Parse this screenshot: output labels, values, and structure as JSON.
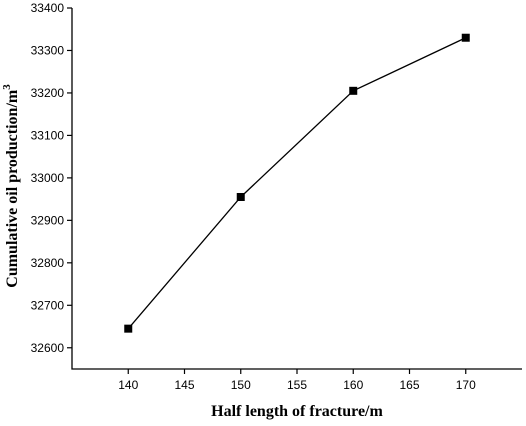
{
  "chart_data": {
    "type": "line",
    "title": "",
    "xlabel": "Half length of fracture/m",
    "ylabel": "Cumulative oil production/m",
    "ylabel_superscript": "3",
    "x": [
      140,
      150,
      160,
      170
    ],
    "series": [
      {
        "values": [
          32645,
          32955,
          33205,
          33330
        ]
      }
    ],
    "xlim": [
      135,
      175
    ],
    "ylim": [
      32550,
      33400
    ],
    "x_ticks": [
      140,
      145,
      150,
      155,
      160,
      165,
      170
    ],
    "x_tick_labels": [
      "140",
      "145",
      "150",
      "155",
      "160",
      "165",
      "170"
    ],
    "y_ticks": [
      32600,
      32700,
      32800,
      32900,
      33000,
      33100,
      33200,
      33300,
      33400
    ],
    "y_tick_labels": [
      "32600",
      "32700",
      "32800",
      "32900",
      "33000",
      "33100",
      "33200",
      "33300",
      "33400"
    ],
    "grid": false,
    "legend": "none",
    "marker": "square",
    "line_color": "#000000"
  }
}
